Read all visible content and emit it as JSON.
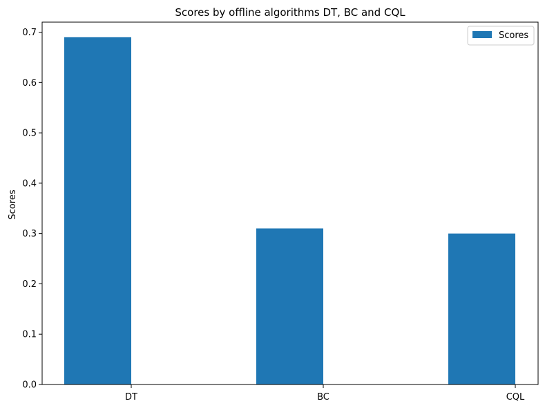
{
  "chart_data": {
    "type": "bar",
    "title": "Scores by offline algorithms DT, BC and CQL",
    "xlabel": "",
    "ylabel": "Scores",
    "categories": [
      "DT",
      "BC",
      "CQL"
    ],
    "series": [
      {
        "name": "Scores",
        "values": [
          0.69,
          0.31,
          0.3
        ],
        "color": "#1f77b4"
      }
    ],
    "ylim": [
      0,
      0.72
    ],
    "yticks": [
      "0.0",
      "0.1",
      "0.2",
      "0.3",
      "0.4",
      "0.5",
      "0.6",
      "0.7"
    ],
    "grid": false,
    "legend_position": "top-right"
  }
}
